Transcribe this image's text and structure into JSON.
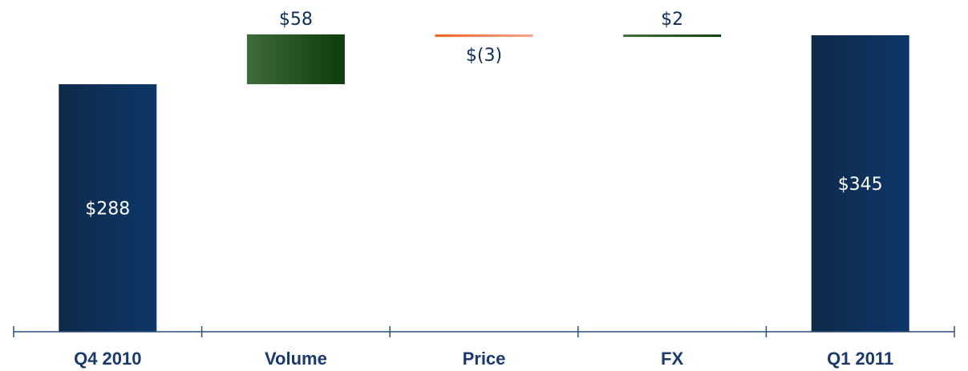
{
  "chart_data": {
    "type": "bar",
    "subtype": "waterfall",
    "title": "",
    "xlabel": "",
    "ylabel": "",
    "categories": [
      "Q4 2010",
      "Volume",
      "Price",
      "FX",
      "Q1 2011"
    ],
    "values": [
      288,
      58,
      -3,
      2,
      345
    ],
    "kinds": [
      "total",
      "delta",
      "delta",
      "delta",
      "total"
    ],
    "data_labels": [
      "$288",
      "$58",
      "$(3)",
      "$2",
      "$345"
    ],
    "ylim": [
      0,
      345
    ],
    "axis_visible": false,
    "grid": false,
    "colors": {
      "total_dark": "#0e2a4a",
      "total_light": "#0d3768",
      "increase_light": "#3f6b3d",
      "increase_dark": "#0d3d0d",
      "decrease_dark": "#ef6322",
      "decrease_light": "#f6a690",
      "label_dark": "#0d2f5a",
      "label_light": "#ffffff",
      "axis_line": "#2b4f7a",
      "category_text": "#1a3a6b"
    }
  }
}
